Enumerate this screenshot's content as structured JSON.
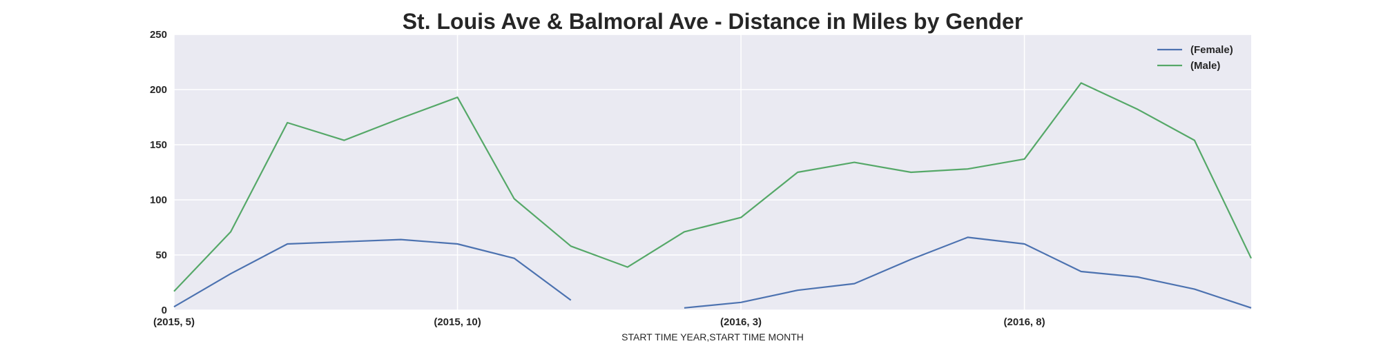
{
  "chart_data": {
    "type": "line",
    "title": "St. Louis Ave & Balmoral Ave - Distance in Miles by Gender",
    "xlabel": "START TIME YEAR,START TIME MONTH",
    "ylabel": "",
    "categories": [
      "(2015, 5)",
      "(2015, 6)",
      "(2015, 7)",
      "(2015, 8)",
      "(2015, 9)",
      "(2015, 10)",
      "(2015, 11)",
      "(2015, 12)",
      "(2016, 1)",
      "(2016, 2)",
      "(2016, 3)",
      "(2016, 4)",
      "(2016, 5)",
      "(2016, 6)",
      "(2016, 7)",
      "(2016, 8)",
      "(2016, 9)",
      "(2016, 10)",
      "(2016, 11)",
      "(2016, 12)"
    ],
    "x_tick_labels": [
      "(2015, 5)",
      "(2015, 10)",
      "(2016, 3)",
      "(2016, 8)"
    ],
    "y_ticks": [
      0,
      50,
      100,
      150,
      200,
      250
    ],
    "ylim": [
      0,
      250
    ],
    "grid": true,
    "legend_position": "top-right",
    "series": [
      {
        "name": "(Female)",
        "color": "#4c72b0",
        "values": [
          3,
          33,
          60,
          62,
          64,
          60,
          47,
          9,
          null,
          2,
          7,
          18,
          24,
          46,
          66,
          60,
          35,
          30,
          19,
          2
        ]
      },
      {
        "name": "(Male)",
        "color": "#55a868",
        "values": [
          17,
          71,
          170,
          154,
          174,
          193,
          101,
          58,
          39,
          71,
          84,
          125,
          134,
          125,
          128,
          137,
          206,
          182,
          154,
          47
        ]
      }
    ]
  }
}
